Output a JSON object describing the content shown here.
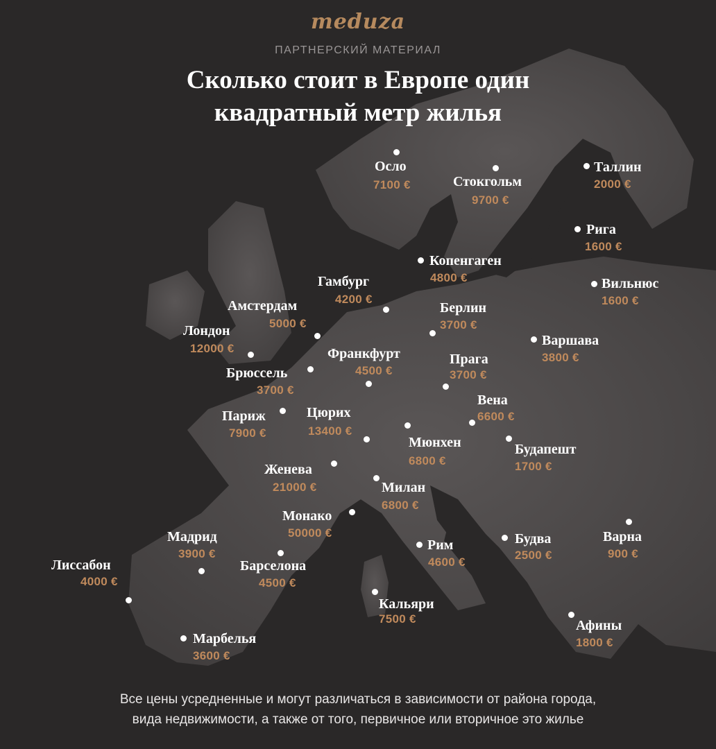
{
  "logo": "meduza",
  "kicker": "ПАРТНЕРСКИЙ МАТЕРИАЛ",
  "title_line1": "Сколько стоит в Европе один",
  "title_line2": "квадратный метр жилья",
  "cities": {
    "oslo": {
      "name": "Осло",
      "price": "7100 €"
    },
    "stockholm": {
      "name": "Стокгольм",
      "price": "9700 €"
    },
    "tallinn": {
      "name": "Таллин",
      "price": "2000 €"
    },
    "riga": {
      "name": "Рига",
      "price": "1600 €"
    },
    "copenhagen": {
      "name": "Копенгаген",
      "price": "4800 €"
    },
    "hamburg": {
      "name": "Гамбург",
      "price": "4200 €"
    },
    "vilnius": {
      "name": "Вильнюс",
      "price": "1600 €"
    },
    "amsterdam": {
      "name": "Амстердам",
      "price": "5000 €"
    },
    "berlin": {
      "name": "Берлин",
      "price": "3700 €"
    },
    "london": {
      "name": "Лондон",
      "price": "12000 €"
    },
    "frankfurt": {
      "name": "Франкфурт",
      "price": "4500 €"
    },
    "warsaw": {
      "name": "Варшава",
      "price": "3800 €"
    },
    "brussels": {
      "name": "Брюссель",
      "price": "3700 €"
    },
    "prague": {
      "name": "Прага",
      "price": "3700 €"
    },
    "vienna": {
      "name": "Вена",
      "price": "6600 €"
    },
    "paris": {
      "name": "Париж",
      "price": "7900 €"
    },
    "zurich": {
      "name": "Цюрих",
      "price": "13400 €"
    },
    "munich": {
      "name": "Мюнхен",
      "price": "6800 €"
    },
    "budapest": {
      "name": "Будапешт",
      "price": "1700 €"
    },
    "geneva": {
      "name": "Женева",
      "price": "21000 €"
    },
    "milan": {
      "name": "Милан",
      "price": "6800 €"
    },
    "monaco": {
      "name": "Монако",
      "price": "50000 €"
    },
    "madrid": {
      "name": "Мадрид",
      "price": "3900 €"
    },
    "rome": {
      "name": "Рим",
      "price": "4600 €"
    },
    "budva": {
      "name": "Будва",
      "price": "2500 €"
    },
    "varna": {
      "name": "Варна",
      "price": "900 €"
    },
    "lisbon": {
      "name": "Лиссабон",
      "price": "4000 €"
    },
    "barcelona": {
      "name": "Барселона",
      "price": "4500 €"
    },
    "cagliari": {
      "name": "Кальяри",
      "price": "7500 €"
    },
    "athens": {
      "name": "Афины",
      "price": "1800 €"
    },
    "marbella": {
      "name": "Марбелья",
      "price": "3600 €"
    }
  },
  "footnote_line1": "Все цены усредненные и могут различаться в зависимости от района города,",
  "footnote_line2": "вида недвижимости, а также от того, первичное или вторичное это жилье",
  "colors": {
    "background": "#2a2828",
    "land": "#4a4747",
    "price": "#c08a5c",
    "logo": "#b68a5e"
  }
}
